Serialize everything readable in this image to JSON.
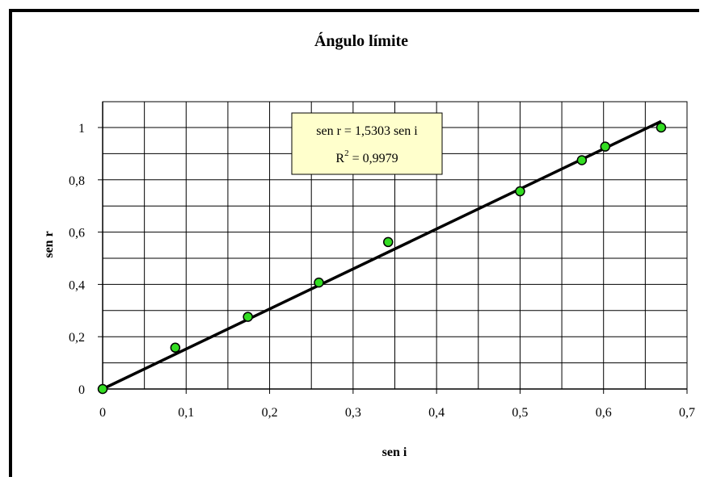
{
  "chart_data": {
    "type": "scatter",
    "title": "Ángulo límite",
    "xlabel": "sen i",
    "ylabel": "sen r",
    "xlim": [
      0,
      0.7
    ],
    "ylim": [
      0,
      1.1
    ],
    "x_ticks": [
      0,
      0.1,
      0.2,
      0.3,
      0.4,
      0.5,
      0.6,
      0.7
    ],
    "x_tick_labels": [
      "0",
      "0,1",
      "0,2",
      "0,3",
      "0,4",
      "0,5",
      "0,6",
      "0,7"
    ],
    "y_ticks": [
      0,
      0.2,
      0.4,
      0.6,
      0.8,
      1
    ],
    "y_tick_labels": [
      "0",
      "0,2",
      "0,4",
      "0,6",
      "0,8",
      "1"
    ],
    "x_minor_grid": [
      0.05,
      0.15,
      0.25,
      0.35,
      0.45,
      0.55,
      0.65
    ],
    "y_minor_grid": [
      0.1,
      0.3,
      0.5,
      0.7,
      0.9
    ],
    "grid": true,
    "series": [
      {
        "points": [
          {
            "x": 0,
            "y": 0
          },
          {
            "x": 0.087,
            "y": 0.158
          },
          {
            "x": 0.174,
            "y": 0.276
          },
          {
            "x": 0.259,
            "y": 0.407
          },
          {
            "x": 0.342,
            "y": 0.562
          },
          {
            "x": 0.5,
            "y": 0.756
          },
          {
            "x": 0.574,
            "y": 0.875
          },
          {
            "x": 0.602,
            "y": 0.927
          },
          {
            "x": 0.669,
            "y": 1.0
          }
        ],
        "marker_color": "#33dd22"
      }
    ],
    "trendline": {
      "slope": 1.5303,
      "intercept": 0,
      "x_range": [
        0,
        0.669
      ],
      "color": "#000000"
    },
    "equation_box": {
      "line1": "sen r = 1,5303 sen i",
      "line2_prefix": "R",
      "line2_sup": "2",
      "line2_suffix": " = 0,9979",
      "background": "#ffffcc"
    }
  }
}
